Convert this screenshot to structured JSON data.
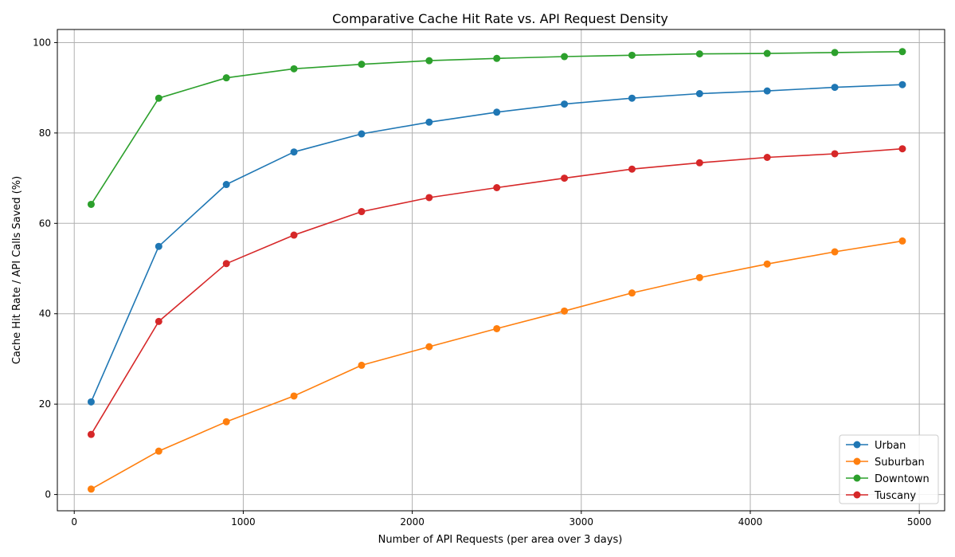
{
  "chart_data": {
    "type": "line",
    "title": "Comparative Cache Hit Rate vs. API Request Density",
    "xlabel": "Number of API Requests (per area over 3 days)",
    "ylabel": "Cache Hit Rate / API Calls Saved (%)",
    "xlim": [
      -100,
      5150
    ],
    "ylim": [
      -3.6,
      102.9
    ],
    "xticks": [
      0,
      1000,
      2000,
      3000,
      4000,
      5000
    ],
    "yticks": [
      0,
      20,
      40,
      60,
      80,
      100
    ],
    "grid": true,
    "legend_position": "lower right",
    "x": [
      100,
      500,
      900,
      1300,
      1700,
      2100,
      2500,
      2900,
      3300,
      3700,
      4100,
      4500,
      4900
    ],
    "series": [
      {
        "name": "Urban",
        "color": "#1f77b4",
        "values": [
          20.5,
          54.9,
          68.6,
          75.8,
          79.8,
          82.4,
          84.6,
          86.4,
          87.7,
          88.7,
          89.3,
          90.1,
          90.7
        ]
      },
      {
        "name": "Suburban",
        "color": "#ff7f0e",
        "values": [
          1.2,
          9.6,
          16.1,
          21.8,
          28.6,
          32.7,
          36.7,
          40.6,
          44.6,
          48.0,
          51.0,
          53.7,
          56.1
        ]
      },
      {
        "name": "Downtown",
        "color": "#2ca02c",
        "values": [
          64.2,
          87.7,
          92.2,
          94.2,
          95.2,
          96.0,
          96.5,
          96.9,
          97.2,
          97.5,
          97.6,
          97.8,
          98.0
        ]
      },
      {
        "name": "Tuscany",
        "color": "#d62728",
        "values": [
          13.3,
          38.3,
          51.1,
          57.4,
          62.6,
          65.7,
          67.9,
          70.0,
          72.0,
          73.4,
          74.6,
          75.4,
          76.5
        ]
      }
    ]
  }
}
